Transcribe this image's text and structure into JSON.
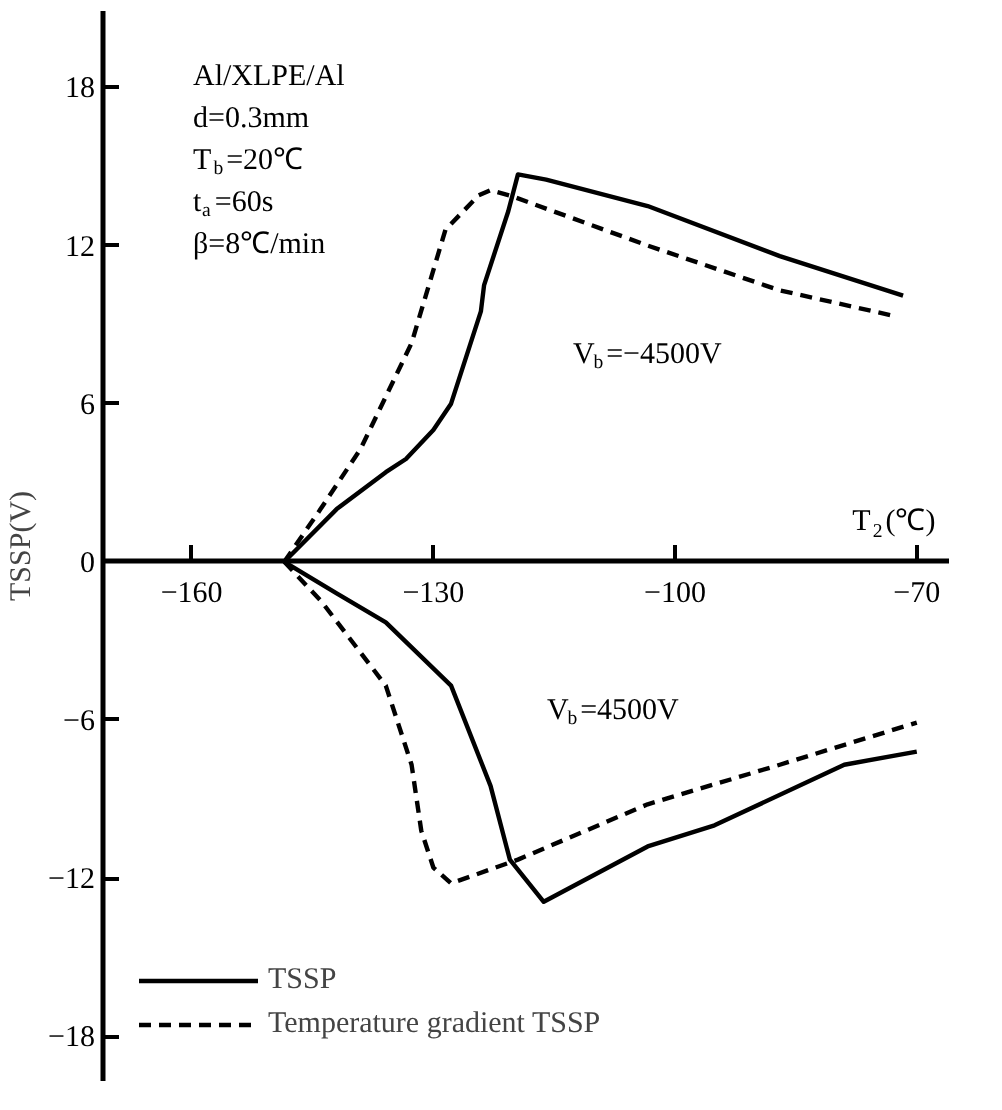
{
  "chart_data": {
    "type": "line",
    "xlabel": "T$_{2}$(℃)",
    "ylabel": "TSSP(V)",
    "xlim": [
      -171,
      -66
    ],
    "ylim": [
      -19.7,
      20.9
    ],
    "xticks": [
      -160,
      -130,
      -100,
      -70
    ],
    "yticks": [
      -18,
      -12,
      -6,
      0,
      6,
      12,
      18
    ],
    "grid": false,
    "legend": "bottom left",
    "marker": "none",
    "annotations": [
      "Al/XLPE/Al",
      "d=0.3mm",
      "T$_{b}$=20℃",
      "t$_{a}$=60s",
      "β=8℃/min",
      "V$_{b}$=−4500V",
      "V$_{b}$=4500V"
    ],
    "series": [
      {
        "name": "TSSP",
        "color": "#000000",
        "line_style": "solid",
        "x": [
          -148.5,
          -142,
          -135.9,
          -133.4,
          -130,
          -127.8,
          -124.1,
          -123.7,
          -120.7,
          -119.5,
          -116,
          -103.4,
          -87,
          -71.7,
          null,
          -148.5,
          -142,
          -135.9,
          -127.8,
          -122.9,
          -120.5,
          -116.3,
          -103.4,
          -95.1,
          -79,
          -70
        ],
        "values": [
          0,
          2,
          3.4,
          3.9,
          5,
          6,
          9.5,
          10.5,
          13.3,
          14.7,
          14.5,
          13.5,
          11.6,
          10.1,
          null,
          0,
          -1.2,
          -2.3,
          -4.7,
          -8.5,
          -11.3,
          -12.9,
          -10.8,
          -10,
          -7.7,
          -7.2
        ]
      },
      {
        "name": "Temperature gradient TSSP",
        "color": "#000000",
        "line_style": "dashed",
        "x": [
          -148.5,
          -144,
          -139,
          -132.7,
          -128.5,
          -124.4,
          -122.9,
          -120.5,
          -103.4,
          -87,
          -72.4,
          null,
          -148.5,
          -143.9,
          -135.9,
          -132.7,
          -131.5,
          -130,
          -127.8,
          -119.5,
          -103.4,
          -87,
          -70
        ],
        "values": [
          0,
          2,
          4.3,
          8.3,
          12.6,
          13.9,
          14.1,
          13.9,
          12,
          10.3,
          9.3,
          null,
          0,
          -1.5,
          -4.7,
          -7.7,
          -10.2,
          -11.6,
          -12.2,
          -11.3,
          -9.2,
          -7.7,
          -6.1
        ]
      }
    ]
  }
}
